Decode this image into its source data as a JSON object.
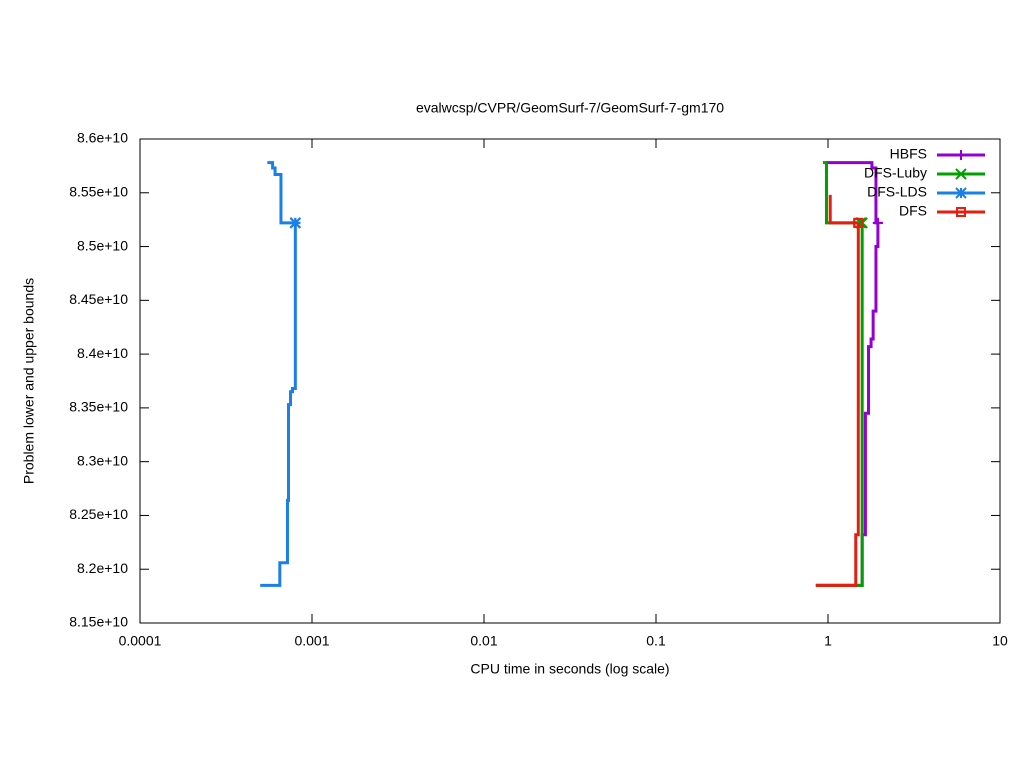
{
  "chart_data": {
    "type": "line",
    "title": "evalwcsp/CVPR/GeomSurf-7/GeomSurf-7-gm170",
    "x_label": "CPU time in seconds (log scale)",
    "y_label": "Problem lower and upper bounds",
    "x_scale": "log",
    "xlim": [
      0.0001,
      10
    ],
    "xticks": [
      0.0001,
      0.001,
      0.01,
      0.1,
      1,
      10
    ],
    "ylim": [
      81500000000.0,
      86000000000.0
    ],
    "yticks": [
      {
        "value": 81500000000.0,
        "label": "8.15e+10"
      },
      {
        "value": 82000000000.0,
        "label": "8.2e+10"
      },
      {
        "value": 82500000000.0,
        "label": "8.25e+10"
      },
      {
        "value": 83000000000.0,
        "label": "8.3e+10"
      },
      {
        "value": 83500000000.0,
        "label": "8.35e+10"
      },
      {
        "value": 84000000000.0,
        "label": "8.4e+10"
      },
      {
        "value": 84500000000.0,
        "label": "8.45e+10"
      },
      {
        "value": 85000000000.0,
        "label": "8.5e+10"
      },
      {
        "value": 85500000000.0,
        "label": "8.55e+10"
      },
      {
        "value": 86000000000.0,
        "label": "8.6e+10"
      }
    ],
    "legend": "top-right",
    "series": [
      {
        "name": "HBFS",
        "color": "#9400d3",
        "marker": "plus",
        "x": [
          0.97,
          1.8,
          1.8,
          1.9,
          1.9,
          1.95,
          null,
          0.85,
          1.58,
          1.58,
          1.65,
          1.65,
          1.72,
          1.72,
          1.78,
          1.78,
          1.83,
          1.83,
          1.9,
          1.9,
          1.95,
          1.95
        ],
        "values": [
          85780000000.0,
          85780000000.0,
          85730000000.0,
          85730000000.0,
          85220000000.0,
          85220000000.0,
          null,
          81850000000.0,
          81850000000.0,
          82320000000.0,
          82320000000.0,
          83450000000.0,
          83450000000.0,
          84070000000.0,
          84070000000.0,
          84140000000.0,
          84140000000.0,
          84400000000.0,
          84400000000.0,
          85000000000.0,
          85000000000.0,
          85220000000.0
        ]
      },
      {
        "name": "DFS-Luby",
        "color": "#00a000",
        "marker": "cross",
        "x": [
          0.935,
          0.98,
          0.98,
          1.55,
          null,
          0.85,
          1.58,
          1.58
        ],
        "values": [
          85780000000.0,
          85780000000.0,
          85220000000.0,
          85220000000.0,
          null,
          81850000000.0,
          81850000000.0,
          85220000000.0
        ]
      },
      {
        "name": "DFS-LDS",
        "color": "#1a7fe6",
        "marker": "star",
        "x": [
          0.00055,
          0.00059,
          0.00059,
          0.00061,
          0.00061,
          0.00066,
          0.00066,
          0.0008,
          null,
          0.0005,
          0.00065,
          0.00065,
          0.00072,
          0.00072,
          0.00073,
          0.00073,
          0.00075,
          0.00075,
          0.00077,
          0.00077,
          0.0008,
          0.0008
        ],
        "values": [
          85780000000.0,
          85780000000.0,
          85730000000.0,
          85730000000.0,
          85670000000.0,
          85670000000.0,
          85220000000.0,
          85220000000.0,
          null,
          81850000000.0,
          81850000000.0,
          82060000000.0,
          82060000000.0,
          82640000000.0,
          82640000000.0,
          83530000000.0,
          83530000000.0,
          83650000000.0,
          83650000000.0,
          83680000000.0,
          83680000000.0,
          85220000000.0
        ]
      },
      {
        "name": "DFS",
        "color": "#e51e10",
        "marker": "square",
        "x": [
          1.03,
          1.03,
          1.5,
          null,
          0.85,
          1.45,
          1.45,
          1.5,
          1.5
        ],
        "values": [
          85480000000.0,
          85220000000.0,
          85220000000.0,
          null,
          81850000000.0,
          81850000000.0,
          82320000000.0,
          82320000000.0,
          85220000000.0
        ]
      }
    ]
  }
}
